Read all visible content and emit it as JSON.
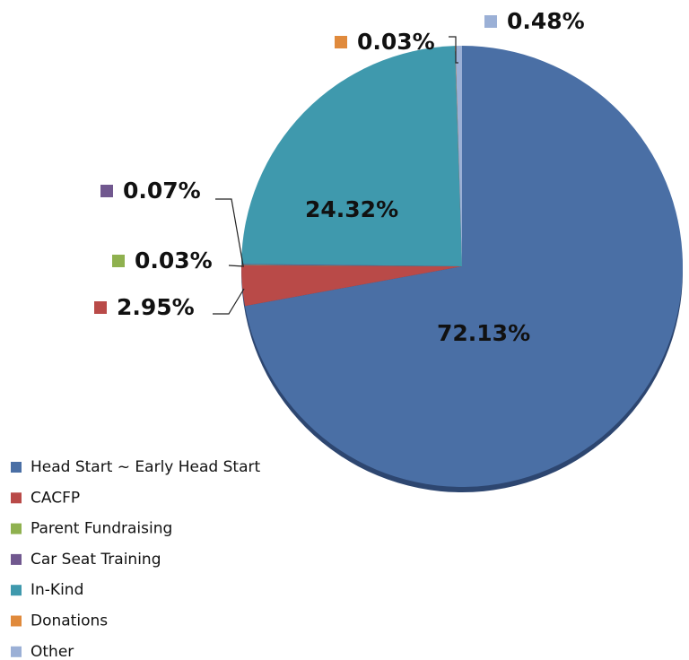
{
  "chart_data": {
    "type": "pie",
    "categories": [
      "Head Start ~ Early Head Start",
      "CACFP",
      "Parent Fundraising",
      "Car Seat Training",
      "In-Kind",
      "Donations",
      "Other"
    ],
    "values": [
      72.13,
      2.95,
      0.03,
      0.07,
      24.32,
      0.03,
      0.48
    ],
    "value_labels": [
      "72.13%",
      "2.95%",
      "0.03%",
      "0.07%",
      "24.32%",
      "0.03%",
      "0.48%"
    ],
    "colors": [
      "#4a6fa5",
      "#b94a48",
      "#8fb14f",
      "#71588f",
      "#3f99ad",
      "#e08a3c",
      "#9bb0d6"
    ],
    "legend": "bottom-left"
  }
}
